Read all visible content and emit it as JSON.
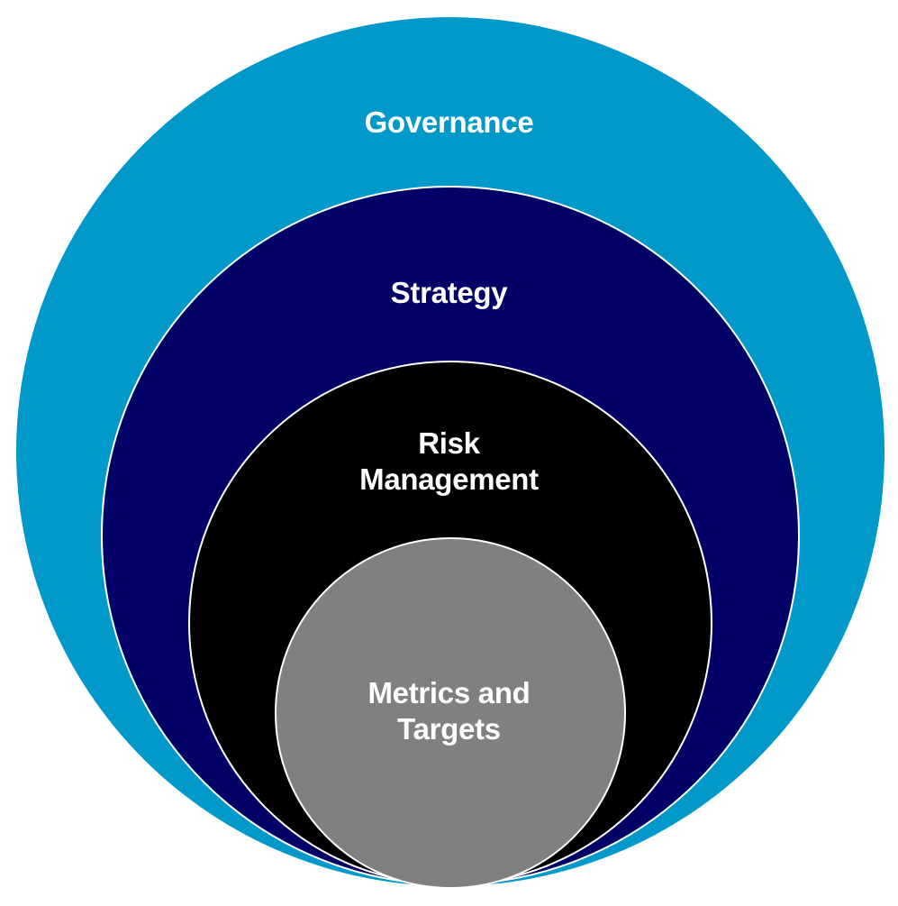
{
  "diagram": {
    "rings": [
      {
        "key": "governance",
        "lines": [
          "Governance"
        ],
        "color": "#0099c9"
      },
      {
        "key": "strategy",
        "lines": [
          "Strategy"
        ],
        "color": "#000066"
      },
      {
        "key": "risk_management",
        "lines": [
          "Risk",
          "Management"
        ],
        "color": "#000000"
      },
      {
        "key": "metrics_and_targets",
        "lines": [
          "Metrics and",
          "Targets"
        ],
        "color": "#808080"
      }
    ],
    "outline_color": "#ffffff"
  }
}
